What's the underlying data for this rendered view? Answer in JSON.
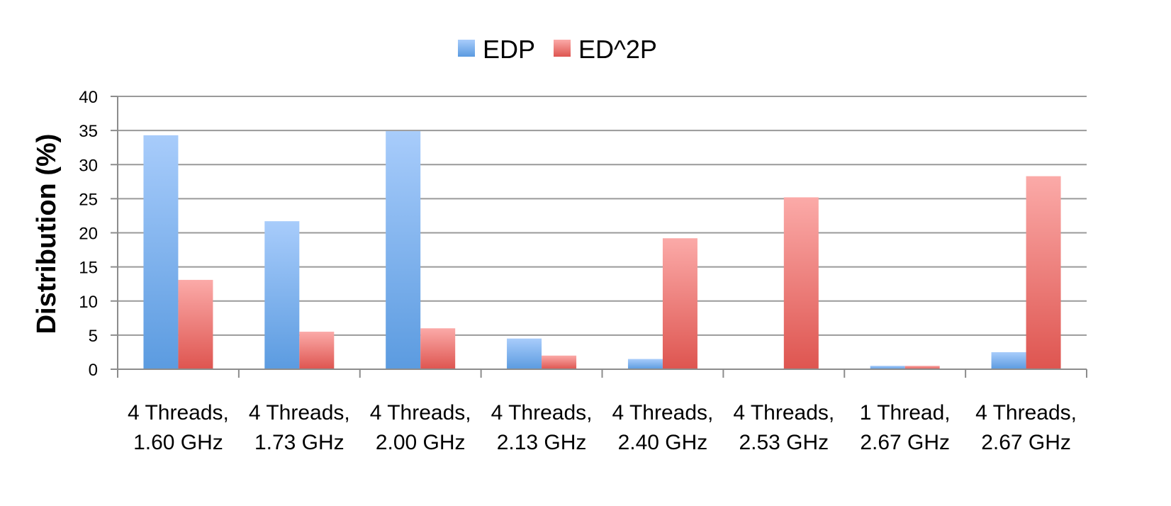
{
  "chart_data": {
    "type": "bar",
    "title": "",
    "xlabel": "",
    "ylabel": "Distribution (%)",
    "ylim": [
      0,
      40
    ],
    "yticks": [
      0,
      5,
      10,
      15,
      20,
      25,
      30,
      35,
      40
    ],
    "grid": true,
    "legend_position": "top-center",
    "categories": [
      [
        "4 Threads,",
        "1.60 GHz"
      ],
      [
        "4 Threads,",
        "1.73 GHz"
      ],
      [
        "4 Threads,",
        "2.00 GHz"
      ],
      [
        "4 Threads,",
        "2.13 GHz"
      ],
      [
        "4 Threads,",
        "2.40 GHz"
      ],
      [
        "4 Threads,",
        "2.53 GHz"
      ],
      [
        "1 Thread,",
        "2.67 GHz"
      ],
      [
        "4 Threads,",
        "2.67 GHz"
      ]
    ],
    "series": [
      {
        "name": "EDP",
        "color_top": "#a8ccfb",
        "color_bottom": "#5b9be0",
        "values": [
          34.3,
          21.7,
          34.9,
          4.5,
          1.5,
          0,
          0.5,
          2.5
        ]
      },
      {
        "name": "ED^2P",
        "color_top": "#fbaaa8",
        "color_bottom": "#de5550",
        "values": [
          13.1,
          5.5,
          6.0,
          2.0,
          19.2,
          25.2,
          0.5,
          28.3
        ]
      }
    ]
  }
}
